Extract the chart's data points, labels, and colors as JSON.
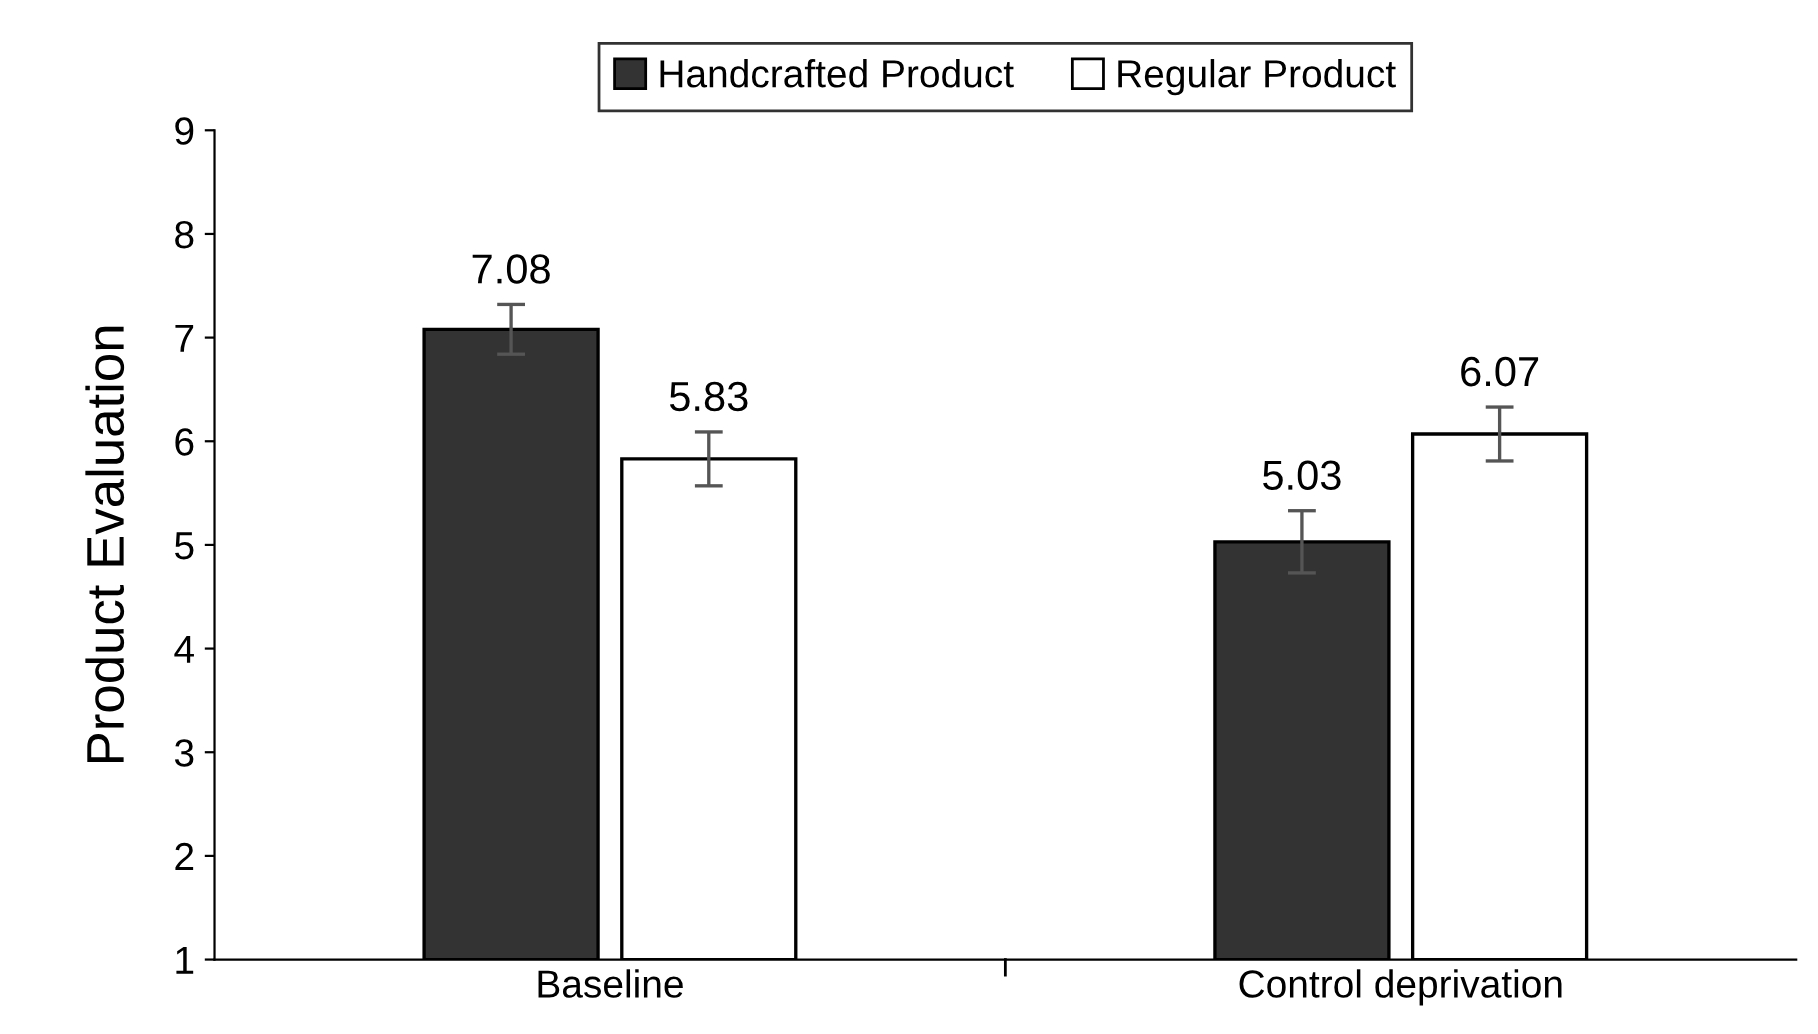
{
  "chart_data": {
    "type": "bar",
    "ylabel": "Product Evaluation",
    "categories": [
      "Baseline",
      "Control deprivation"
    ],
    "series": [
      {
        "name": "Handcrafted Product",
        "color": "#333333",
        "values": [
          7.08,
          5.03
        ],
        "errors": [
          0.24,
          0.3
        ]
      },
      {
        "name": "Regular Product",
        "color": "#ffffff",
        "values": [
          5.83,
          6.07
        ],
        "errors": [
          0.26,
          0.26
        ]
      }
    ],
    "ylim": [
      1,
      9
    ],
    "yticks": [
      1,
      2,
      3,
      4,
      5,
      6,
      7,
      8,
      9
    ],
    "grid": false,
    "legend": "top",
    "data_labels": true
  }
}
